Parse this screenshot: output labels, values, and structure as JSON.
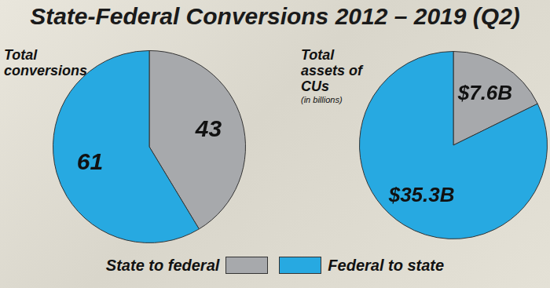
{
  "title": "State-Federal Conversions 2012 – 2019 (Q2)",
  "legend": "bottom",
  "chart_data": [
    {
      "type": "pie",
      "title": "Total conversions",
      "categories": [
        "State to federal",
        "Federal to state"
      ],
      "values": [
        43,
        61
      ],
      "colors": [
        "#a7a9ac",
        "#27a9e1"
      ],
      "data_labels": true
    },
    {
      "type": "pie",
      "title": "Total assets of CUs",
      "subtitle": "(in billions)",
      "categories": [
        "State to federal",
        "Federal to state"
      ],
      "values": [
        7.6,
        35.3
      ],
      "value_labels": [
        "$7.6B",
        "$35.3B"
      ],
      "colors": [
        "#a7a9ac",
        "#27a9e1"
      ],
      "data_labels": true
    }
  ]
}
